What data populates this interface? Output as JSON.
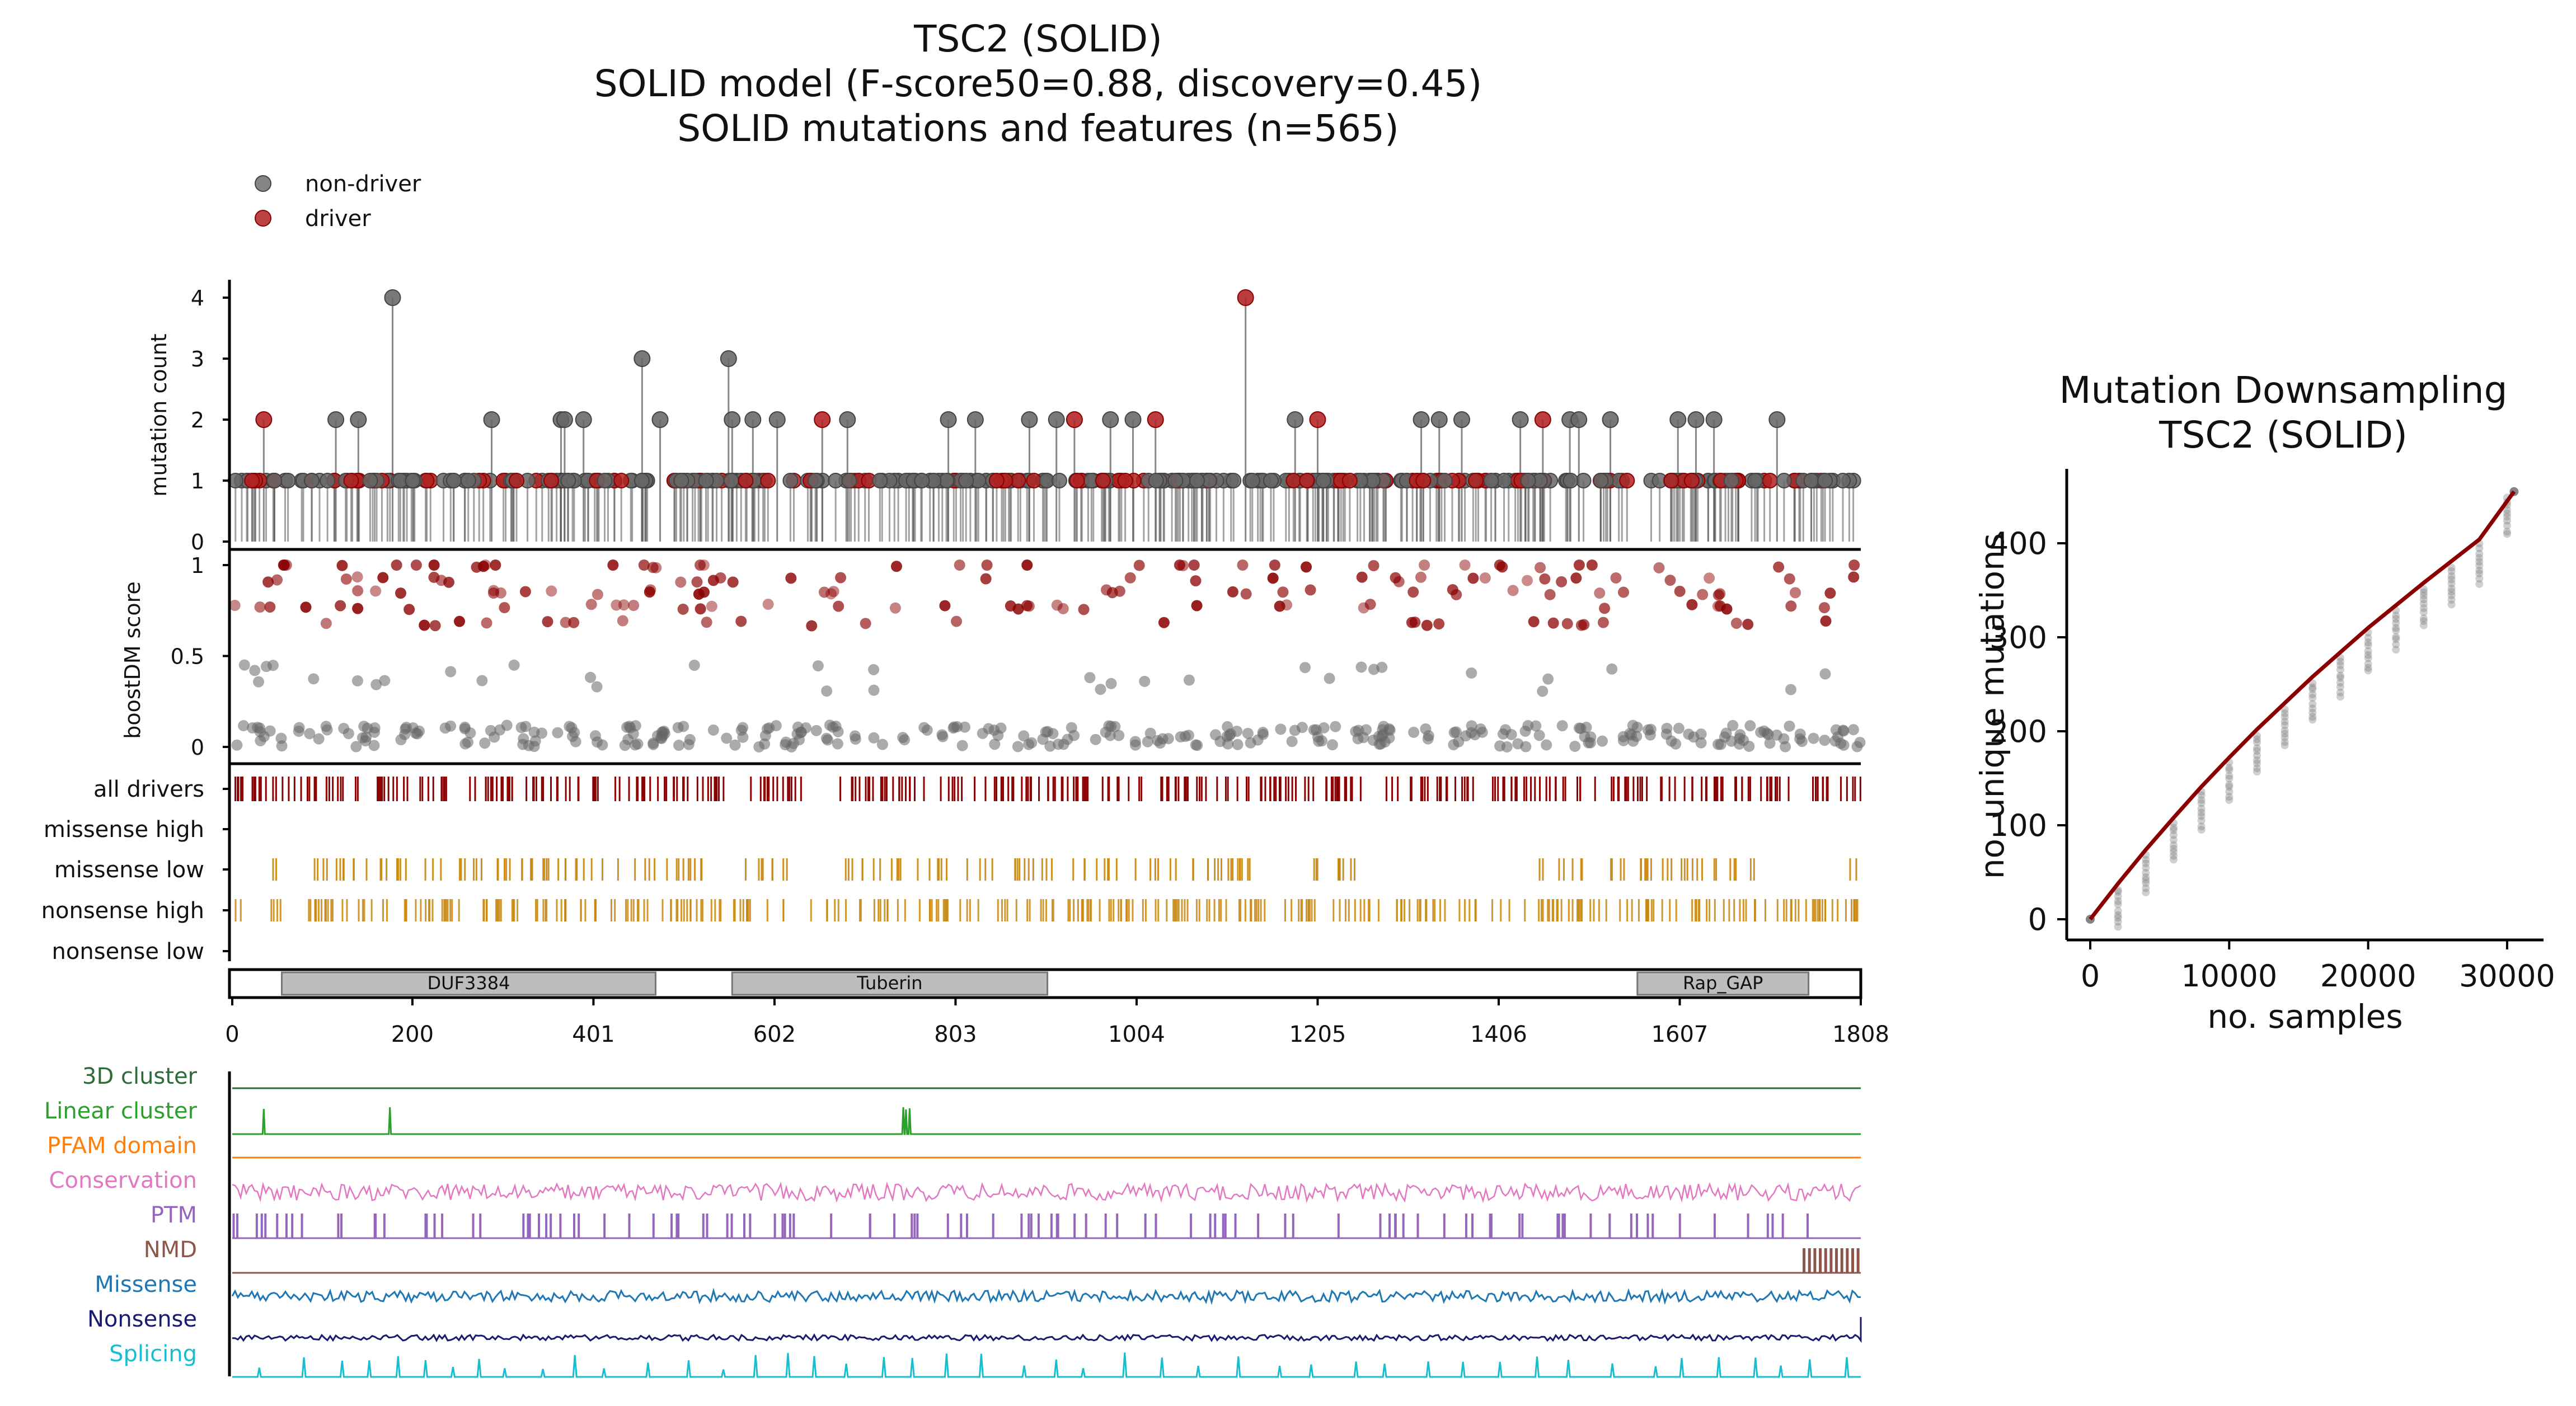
{
  "title": {
    "line1": "TSC2 (SOLID)",
    "line2": "SOLID model (F-score50=0.88, discovery=0.45)",
    "line3": "SOLID mutations and features (n=565)"
  },
  "legend": {
    "non_driver": "non-driver",
    "driver": "driver"
  },
  "colors": {
    "non_driver": "#666666",
    "driver": "#b22222",
    "driver_dark": "#8b0000",
    "missense": "#c8860b",
    "domain_fill": "#bdbdbd",
    "cluster3d": "#2e6b3a",
    "linear_cluster": "#2ca02c",
    "pfam": "#ff7f0e",
    "conservation": "#e377c2",
    "ptm": "#9467bd",
    "nmd": "#8c564b",
    "missense_track": "#1f77b4",
    "nonsense_track": "#1a1a6e",
    "splicing": "#17becf",
    "downsampling_line": "#8b0000"
  },
  "chart_data": [
    {
      "type": "lollipop",
      "ylabel": "mutation count",
      "ylim": [
        0,
        4
      ],
      "yticks": [
        "0",
        "1",
        "2",
        "3",
        "4"
      ],
      "protein_length": 1808,
      "x_ticks": [
        "0",
        "200",
        "401",
        "602",
        "803",
        "1004",
        "1205",
        "1406",
        "1607",
        "1808"
      ],
      "x_tick_values": [
        0,
        200,
        401,
        602,
        803,
        1004,
        1205,
        1406,
        1607,
        1808
      ],
      "tall_sites": [
        {
          "pos": 35,
          "count": 2,
          "driver": true
        },
        {
          "pos": 115,
          "count": 2,
          "driver": false
        },
        {
          "pos": 140,
          "count": 2,
          "driver": false
        },
        {
          "pos": 178,
          "count": 4,
          "driver": false
        },
        {
          "pos": 288,
          "count": 2,
          "driver": false
        },
        {
          "pos": 365,
          "count": 2,
          "driver": false
        },
        {
          "pos": 369,
          "count": 2,
          "driver": false
        },
        {
          "pos": 390,
          "count": 2,
          "driver": false
        },
        {
          "pos": 455,
          "count": 3,
          "driver": false
        },
        {
          "pos": 475,
          "count": 2,
          "driver": false
        },
        {
          "pos": 551,
          "count": 3,
          "driver": false
        },
        {
          "pos": 555,
          "count": 2,
          "driver": false
        },
        {
          "pos": 578,
          "count": 2,
          "driver": false
        },
        {
          "pos": 605,
          "count": 2,
          "driver": false
        },
        {
          "pos": 655,
          "count": 2,
          "driver": true
        },
        {
          "pos": 683,
          "count": 2,
          "driver": false
        },
        {
          "pos": 795,
          "count": 2,
          "driver": false
        },
        {
          "pos": 825,
          "count": 2,
          "driver": false
        },
        {
          "pos": 885,
          "count": 2,
          "driver": false
        },
        {
          "pos": 915,
          "count": 2,
          "driver": false
        },
        {
          "pos": 935,
          "count": 2,
          "driver": true
        },
        {
          "pos": 975,
          "count": 2,
          "driver": false
        },
        {
          "pos": 1000,
          "count": 2,
          "driver": false
        },
        {
          "pos": 1025,
          "count": 2,
          "driver": true
        },
        {
          "pos": 1125,
          "count": 4,
          "driver": true
        },
        {
          "pos": 1180,
          "count": 2,
          "driver": false
        },
        {
          "pos": 1205,
          "count": 2,
          "driver": true
        },
        {
          "pos": 1320,
          "count": 2,
          "driver": false
        },
        {
          "pos": 1340,
          "count": 2,
          "driver": false
        },
        {
          "pos": 1365,
          "count": 2,
          "driver": false
        },
        {
          "pos": 1430,
          "count": 2,
          "driver": false
        },
        {
          "pos": 1455,
          "count": 2,
          "driver": true
        },
        {
          "pos": 1485,
          "count": 2,
          "driver": false
        },
        {
          "pos": 1495,
          "count": 2,
          "driver": false
        },
        {
          "pos": 1530,
          "count": 2,
          "driver": false
        },
        {
          "pos": 1605,
          "count": 2,
          "driver": false
        },
        {
          "pos": 1625,
          "count": 2,
          "driver": false
        },
        {
          "pos": 1645,
          "count": 2,
          "driver": false
        },
        {
          "pos": 1715,
          "count": 2,
          "driver": false
        }
      ]
    },
    {
      "type": "scatter",
      "ylabel": "boostDM score",
      "ylim": [
        0,
        1
      ],
      "yticks": [
        "0",
        "0.5",
        "1"
      ],
      "levels": [
        0,
        0.05,
        0.1,
        0.38,
        0.45,
        0.52,
        0.68,
        0.77,
        0.85,
        0.92,
        1.0
      ]
    },
    {
      "type": "track_rug",
      "tracks": [
        "all drivers",
        "missense high",
        "missense low",
        "nonsense high",
        "nonsense low"
      ]
    },
    {
      "type": "domains",
      "domains": [
        {
          "name": "DUF3384",
          "start": 55,
          "end": 470
        },
        {
          "name": "Tuberin",
          "start": 555,
          "end": 905
        },
        {
          "name": "Rap_GAP",
          "start": 1560,
          "end": 1750
        }
      ]
    },
    {
      "type": "feature_tracks",
      "tracks": [
        "3D cluster",
        "Linear cluster",
        "PFAM domain",
        "Conservation",
        "PTM",
        "NMD",
        "Missense",
        "Nonsense",
        "Splicing"
      ]
    },
    {
      "type": "line",
      "title_line1": "Mutation Downsampling",
      "title_line2": "TSC2 (SOLID)",
      "xlabel": "no. samples",
      "ylabel": "no. unique mutations",
      "xlim": [
        -1500,
        32500
      ],
      "ylim": [
        -25,
        480
      ],
      "x_ticks": [
        "0",
        "10000",
        "20000",
        "30000"
      ],
      "x_tick_values": [
        0,
        10000,
        20000,
        30000
      ],
      "y_ticks": [
        "0",
        "100",
        "200",
        "300",
        "400"
      ],
      "y_tick_values": [
        0,
        100,
        200,
        300,
        400
      ],
      "series": [
        {
          "name": "fit",
          "x": [
            0,
            2000,
            4000,
            6000,
            8000,
            10000,
            12000,
            14000,
            16000,
            18000,
            20000,
            22000,
            24000,
            26000,
            28000,
            30500
          ],
          "y": [
            0,
            38,
            74,
            108,
            141,
            172,
            202,
            230,
            258,
            284,
            310,
            334,
            358,
            381,
            404,
            455
          ]
        }
      ]
    }
  ]
}
